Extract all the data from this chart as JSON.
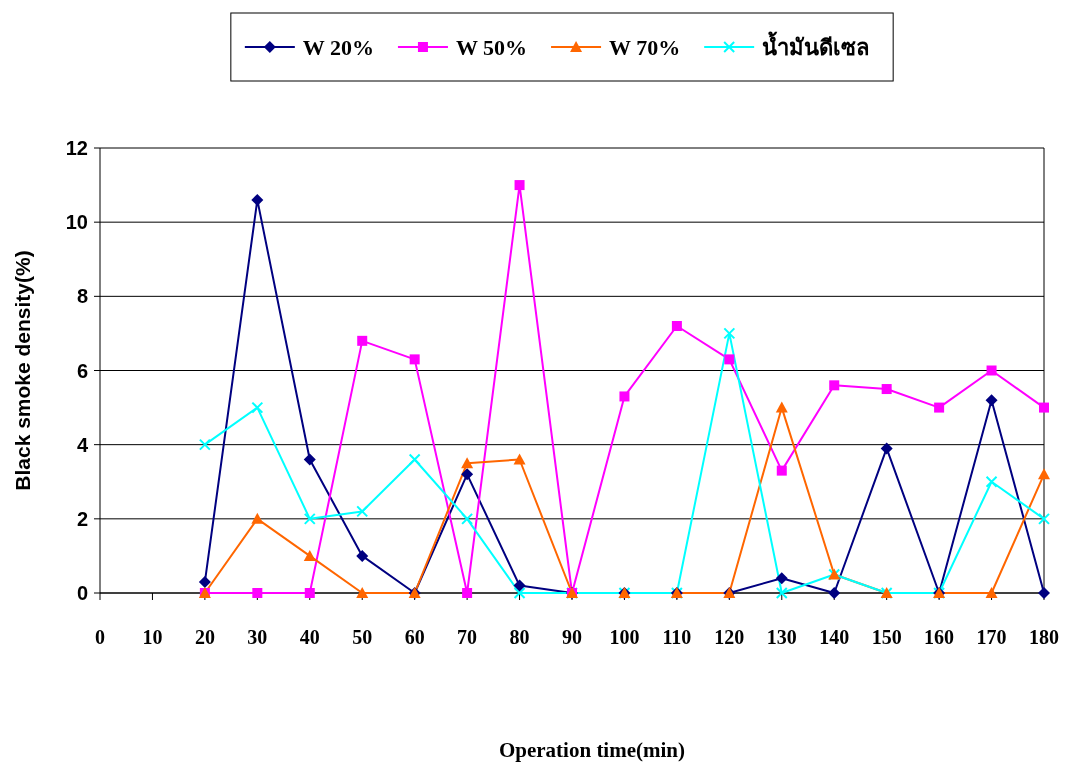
{
  "chart_data": {
    "type": "line",
    "xlabel": "Operation time(min)",
    "ylabel": "Black smoke density(%)",
    "categories": [
      "0",
      "10",
      "20",
      "30",
      "40",
      "50",
      "60",
      "70",
      "80",
      "90",
      "100",
      "110",
      "120",
      "130",
      "140",
      "150",
      "160",
      "170",
      "180"
    ],
    "series": [
      {
        "name": "W 20%",
        "color": "#000080",
        "marker": "diamond",
        "values": [
          null,
          null,
          0.3,
          10.6,
          3.6,
          1.0,
          0,
          3.2,
          0.2,
          0,
          0,
          0,
          0,
          0.4,
          0,
          3.9,
          0,
          5.2,
          0
        ]
      },
      {
        "name": "W 50%",
        "color": "#ff00ff",
        "marker": "square",
        "values": [
          null,
          null,
          0,
          0,
          0,
          6.8,
          6.3,
          0,
          11.0,
          0,
          5.3,
          7.2,
          6.3,
          3.3,
          5.6,
          5.5,
          5.0,
          6.0,
          5.0
        ]
      },
      {
        "name": "W 70%",
        "color": "#ff6600",
        "marker": "triangle",
        "values": [
          null,
          null,
          0,
          2.0,
          1.0,
          0,
          0,
          3.5,
          3.6,
          0,
          0,
          0,
          0,
          5.0,
          0.5,
          0,
          0,
          0,
          3.2
        ]
      },
      {
        "name": "น้ำมันดีเซล",
        "color": "#00ffff",
        "marker": "cross",
        "values": [
          null,
          null,
          4.0,
          5.0,
          2.0,
          2.2,
          3.6,
          2.0,
          0,
          0,
          0,
          0,
          7.0,
          0,
          0.5,
          0,
          0,
          3.0,
          2.0
        ]
      }
    ],
    "ylim": [
      0,
      12
    ],
    "yticks": [
      0,
      2,
      4,
      6,
      8,
      10,
      12
    ],
    "grid": "y",
    "legend": "top",
    "line_style": "solid"
  }
}
